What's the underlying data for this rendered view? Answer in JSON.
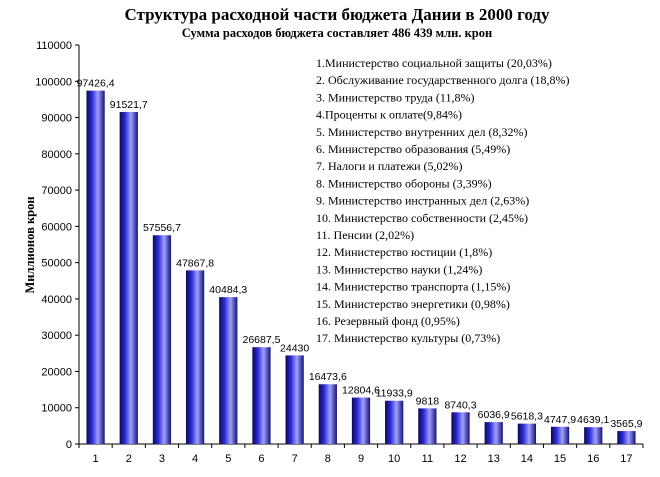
{
  "chart_data": {
    "type": "bar",
    "title": "Структура расходной части бюджета Дании в 2000 году",
    "subtitle": "Сумма расходов бюджета составляет 486 439 млн. крон",
    "ylabel": "Миллионов крон",
    "xlabel": "",
    "ylim": [
      0,
      110000
    ],
    "yticks": [
      0,
      10000,
      20000,
      30000,
      40000,
      50000,
      60000,
      70000,
      80000,
      90000,
      100000,
      110000
    ],
    "categories": [
      "1",
      "2",
      "3",
      "4",
      "5",
      "6",
      "7",
      "8",
      "9",
      "10",
      "11",
      "12",
      "13",
      "14",
      "15",
      "16",
      "17"
    ],
    "values": [
      97426.4,
      91521.7,
      57556.7,
      47867.8,
      40484.3,
      26687.5,
      24430,
      16473.6,
      12804.6,
      11933.9,
      9818,
      8740.3,
      6036.9,
      5618.3,
      4747.9,
      4639.1,
      3565.9
    ],
    "value_labels": [
      "97426,4",
      "91521,7",
      "57556,7",
      "47867,8",
      "40484,3",
      "26687,5",
      "24430",
      "16473,6",
      "12804,6",
      "11933,9",
      "9818",
      "8740,3",
      "6036,9",
      "5618,3",
      "4747,9",
      "4639,1",
      "3565,9"
    ],
    "legend": [
      "1.Министерство социальной защиты (20,03%)",
      "2. Обслуживание государственного долга (18,8%)",
      "3. Министерство труда (11,8%)",
      "4.Проценты к оплате(9,84%)",
      "5. Министерство внутренних дел (8,32%)",
      "6. Министерство образования (5,49%)",
      "7. Налоги и платежи (5,02%)",
      "8. Министерство обороны (3,39%)",
      "9. Министерство инстранных дел (2,63%)",
      "10. Министерство собственности (2,45%)",
      "11. Пенсии (2,02%)",
      "12. Министерство юстиции (1,8%)",
      "13. Министерство науки (1,24%)",
      "14. Министерство транспорта (1,15%)",
      "15. Министерство энергетики (0,98%)",
      "16. Резервный фонд (0,95%)",
      "17. Министерство культуры (0,73%)"
    ],
    "legend_placement": "top-right",
    "grid": false,
    "colors": {
      "bar_dark": "#0a0a50",
      "bar_mid": "#2a2ad8",
      "bar_light": "#a0a0ff"
    }
  }
}
